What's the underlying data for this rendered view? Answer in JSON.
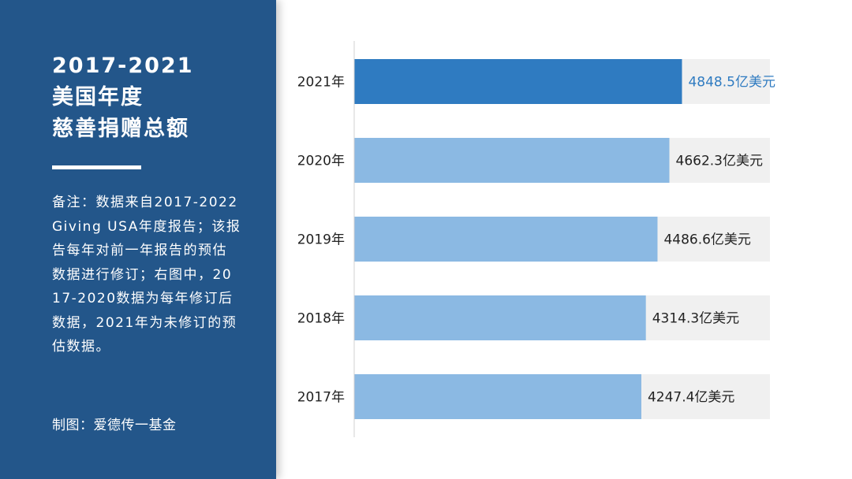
{
  "sidebar": {
    "title_lines": [
      "2017-2021",
      "美国年度",
      "慈善捐赠总额"
    ],
    "note": "备注：数据来自2017-2022Giving USA年度报告；该报告每年对前一年报告的预估数据进行修订；右图中，2017-2020数据为每年修订后数据，2021年为未修订的预估数据。",
    "credit": "制图：爱德传一基金"
  },
  "colors": {
    "panel": "#23568a",
    "highlight_bar": "#2f7bc1",
    "bar": "#8bb9e3",
    "track": "#f0f0f0",
    "highlight_label": "#2f7bc1",
    "label": "#222222"
  },
  "chart_data": {
    "type": "bar",
    "orientation": "horizontal",
    "categories": [
      "2021年",
      "2020年",
      "2019年",
      "2018年",
      "2017年"
    ],
    "values": [
      4848.5,
      4662.3,
      4486.6,
      4314.3,
      4247.4
    ],
    "value_labels": [
      "4848.5亿美元",
      "4662.3亿美元",
      "4486.6亿美元",
      "4314.3亿美元",
      "4247.4亿美元"
    ],
    "unit": "亿美元",
    "highlight_index": 0,
    "title": "",
    "xlabel": "",
    "ylabel": "",
    "xlim": [
      0,
      6150
    ],
    "grid": false,
    "legend": "none"
  }
}
